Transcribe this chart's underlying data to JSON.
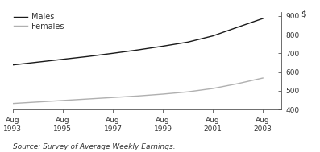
{
  "ylabel": "$",
  "source": "Source: Survey of Average Weekly Earnings.",
  "xlim": [
    1993,
    2003.75
  ],
  "ylim": [
    400,
    920
  ],
  "yticks": [
    400,
    500,
    600,
    700,
    800,
    900
  ],
  "xtick_years": [
    1993,
    1995,
    1997,
    1999,
    2001,
    2003
  ],
  "males_x": [
    1993,
    1994,
    1995,
    1996,
    1997,
    1998,
    1999,
    2000,
    2001,
    2002,
    2003
  ],
  "males_y": [
    638,
    653,
    668,
    683,
    700,
    718,
    738,
    760,
    793,
    840,
    886
  ],
  "females_x": [
    1993,
    1994,
    1995,
    1996,
    1997,
    1998,
    1999,
    2000,
    2001,
    2002,
    2003
  ],
  "females_y": [
    432,
    440,
    448,
    456,
    464,
    472,
    482,
    494,
    512,
    538,
    568
  ],
  "males_color": "#1a1a1a",
  "females_color": "#b0b0b0",
  "males_label": "Males",
  "females_label": "Females",
  "line_width": 1.0,
  "background_color": "#ffffff",
  "legend_fontsize": 7,
  "tick_fontsize": 6.5,
  "source_fontsize": 6.5,
  "ylabel_fontsize": 7.5
}
